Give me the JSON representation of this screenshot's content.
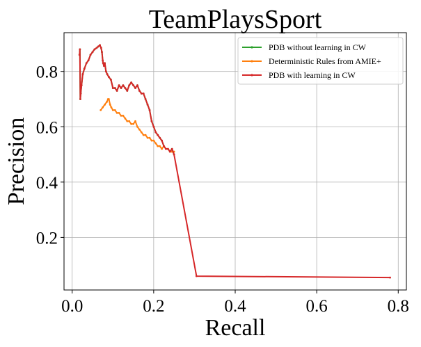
{
  "chart_data": {
    "type": "line",
    "title": "TeamPlaysSport",
    "xlabel": "Recall",
    "ylabel": "Precision",
    "xlim": [
      -0.02,
      0.82
    ],
    "ylim": [
      0.01,
      0.94
    ],
    "xticks": [
      0.0,
      0.2,
      0.4,
      0.6,
      0.8
    ],
    "xtick_labels": [
      "0.0",
      "0.2",
      "0.4",
      "0.6",
      "0.8"
    ],
    "yticks": [
      0.2,
      0.4,
      0.6,
      0.8
    ],
    "ytick_labels": [
      "0.2",
      "0.4",
      "0.6",
      "0.8"
    ],
    "grid": true,
    "legend_position": "top-right",
    "series": [
      {
        "name": "PDB without learning in CW",
        "color": "#2ca02c",
        "x": [
          0.018,
          0.019,
          0.02,
          0.021,
          0.023,
          0.026,
          0.03,
          0.035,
          0.04,
          0.045,
          0.05,
          0.055,
          0.06,
          0.064,
          0.068,
          0.071,
          0.073,
          0.075,
          0.076,
          0.078,
          0.08,
          0.083,
          0.086,
          0.09,
          0.095,
          0.1,
          0.105,
          0.11,
          0.115,
          0.12,
          0.125,
          0.13,
          0.135,
          0.14,
          0.145,
          0.15,
          0.155,
          0.16,
          0.165,
          0.17,
          0.175,
          0.18,
          0.185,
          0.19,
          0.195,
          0.2,
          0.205,
          0.21,
          0.215,
          0.22,
          0.225,
          0.23,
          0.235,
          0.24,
          0.245,
          0.25
        ],
        "y": [
          0.86,
          0.88,
          0.7,
          0.72,
          0.75,
          0.79,
          0.81,
          0.83,
          0.84,
          0.86,
          0.87,
          0.88,
          0.885,
          0.89,
          0.895,
          0.885,
          0.87,
          0.84,
          0.83,
          0.82,
          0.83,
          0.8,
          0.79,
          0.78,
          0.77,
          0.74,
          0.74,
          0.73,
          0.75,
          0.74,
          0.75,
          0.74,
          0.73,
          0.75,
          0.76,
          0.75,
          0.74,
          0.75,
          0.73,
          0.72,
          0.72,
          0.7,
          0.68,
          0.66,
          0.62,
          0.6,
          0.58,
          0.57,
          0.56,
          0.55,
          0.53,
          0.52,
          0.52,
          0.51,
          0.52,
          0.5
        ]
      },
      {
        "name": "Deterministic Rules from AMIE+",
        "color": "#ff7f0e",
        "x": [
          0.07,
          0.075,
          0.08,
          0.085,
          0.088,
          0.09,
          0.093,
          0.096,
          0.1,
          0.105,
          0.11,
          0.115,
          0.12,
          0.125,
          0.13,
          0.135,
          0.14,
          0.145,
          0.15,
          0.155,
          0.16,
          0.165,
          0.17,
          0.175,
          0.18,
          0.185,
          0.19,
          0.195,
          0.2,
          0.205,
          0.21,
          0.215,
          0.22,
          0.225,
          0.23,
          0.235,
          0.24,
          0.245,
          0.25
        ],
        "y": [
          0.66,
          0.67,
          0.68,
          0.69,
          0.7,
          0.7,
          0.68,
          0.67,
          0.66,
          0.66,
          0.65,
          0.65,
          0.64,
          0.64,
          0.63,
          0.62,
          0.62,
          0.61,
          0.61,
          0.62,
          0.6,
          0.59,
          0.58,
          0.57,
          0.57,
          0.56,
          0.56,
          0.55,
          0.55,
          0.54,
          0.53,
          0.53,
          0.52,
          0.53,
          0.52,
          0.52,
          0.51,
          0.51,
          0.51
        ]
      },
      {
        "name": "PDB with learning in CW",
        "color": "#d62728",
        "x": [
          0.018,
          0.019,
          0.02,
          0.021,
          0.023,
          0.026,
          0.03,
          0.035,
          0.04,
          0.045,
          0.05,
          0.055,
          0.06,
          0.064,
          0.068,
          0.071,
          0.073,
          0.075,
          0.076,
          0.078,
          0.08,
          0.083,
          0.086,
          0.09,
          0.095,
          0.1,
          0.105,
          0.11,
          0.115,
          0.12,
          0.125,
          0.13,
          0.135,
          0.14,
          0.145,
          0.15,
          0.155,
          0.16,
          0.165,
          0.17,
          0.175,
          0.18,
          0.185,
          0.19,
          0.195,
          0.2,
          0.205,
          0.21,
          0.215,
          0.22,
          0.225,
          0.23,
          0.235,
          0.24,
          0.245,
          0.25,
          0.305,
          0.78
        ],
        "y": [
          0.86,
          0.88,
          0.7,
          0.72,
          0.75,
          0.79,
          0.81,
          0.83,
          0.84,
          0.86,
          0.87,
          0.88,
          0.885,
          0.89,
          0.895,
          0.885,
          0.87,
          0.84,
          0.83,
          0.82,
          0.83,
          0.8,
          0.79,
          0.78,
          0.77,
          0.74,
          0.74,
          0.73,
          0.75,
          0.74,
          0.75,
          0.74,
          0.73,
          0.75,
          0.76,
          0.75,
          0.74,
          0.75,
          0.73,
          0.72,
          0.72,
          0.7,
          0.68,
          0.66,
          0.62,
          0.6,
          0.58,
          0.57,
          0.56,
          0.55,
          0.53,
          0.52,
          0.52,
          0.51,
          0.52,
          0.5,
          0.06,
          0.055
        ]
      }
    ]
  }
}
